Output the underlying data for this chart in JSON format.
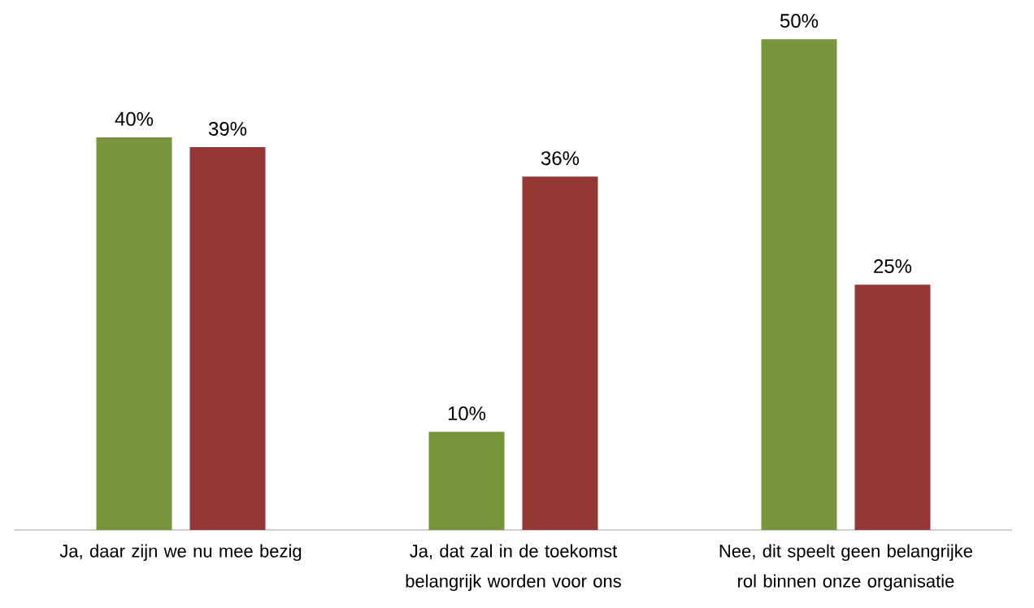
{
  "chart_data": {
    "type": "bar",
    "categories": [
      "Ja, daar zijn we nu mee bezig",
      "Ja, dat zal in de toekomst belangrijk worden voor ons",
      "Nee, dit speelt geen belangrijke rol binnen onze organisatie"
    ],
    "series": [
      {
        "color": "#77963b",
        "values": [
          40,
          10,
          50
        ],
        "value_labels": [
          "40%",
          "10%",
          "50%"
        ]
      },
      {
        "color": "#953735",
        "values": [
          39,
          36,
          25
        ],
        "value_labels": [
          "39%",
          "36%",
          "25%"
        ]
      }
    ]
  }
}
